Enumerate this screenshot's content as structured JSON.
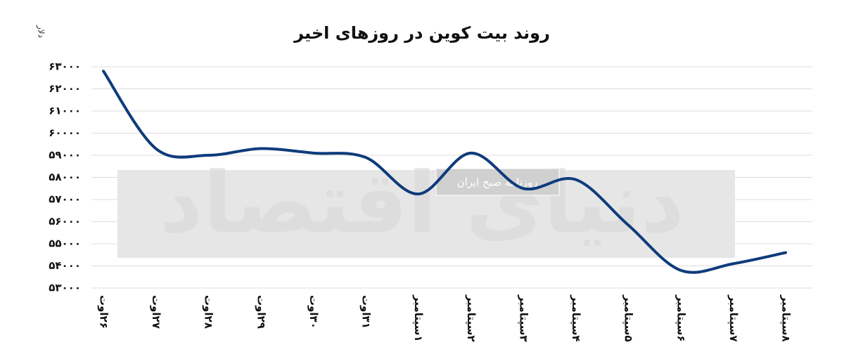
{
  "chart_data": {
    "type": "line",
    "title": "روند بیت کوین در روزهای اخیر",
    "y_label": "دلار",
    "watermark": "دنیای اقتصاد",
    "watermark_tag": "روزنامه صبح ایران",
    "categories": [
      "۲۶اوت",
      "۲۷اوت",
      "۲۸اوت",
      "۲۹اوت",
      "۳۰اوت",
      "۳۱اوت",
      "۱سپتامبر",
      "۲سپتامبر",
      "۳سپتامبر",
      "۴سپتامبر",
      "۵سپتامبر",
      "۶سپتامبر",
      "۷سپتامبر",
      "۸سپتامبر"
    ],
    "series": [
      {
        "name": "بیت کوین",
        "color": "#0e3b7c",
        "values": [
          62800,
          59300,
          59000,
          59300,
          59100,
          58900,
          57250,
          59100,
          57500,
          57900,
          55850,
          53800,
          54100,
          54600
        ]
      }
    ],
    "ylim": [
      53000,
      63000
    ],
    "yticks": [
      {
        "value": 53000,
        "label": "۵۳۰۰۰"
      },
      {
        "value": 54000,
        "label": "۵۴۰۰۰"
      },
      {
        "value": 55000,
        "label": "۵۵۰۰۰"
      },
      {
        "value": 56000,
        "label": "۵۶۰۰۰"
      },
      {
        "value": 57000,
        "label": "۵۷۰۰۰"
      },
      {
        "value": 58000,
        "label": "۵۸۰۰۰"
      },
      {
        "value": 59000,
        "label": "۵۹۰۰۰"
      },
      {
        "value": 60000,
        "label": "۶۰۰۰۰"
      },
      {
        "value": 61000,
        "label": "۶۱۰۰۰"
      },
      {
        "value": 62000,
        "label": "۶۲۰۰۰"
      },
      {
        "value": 63000,
        "label": "۶۳۰۰۰"
      }
    ],
    "grid": true
  }
}
